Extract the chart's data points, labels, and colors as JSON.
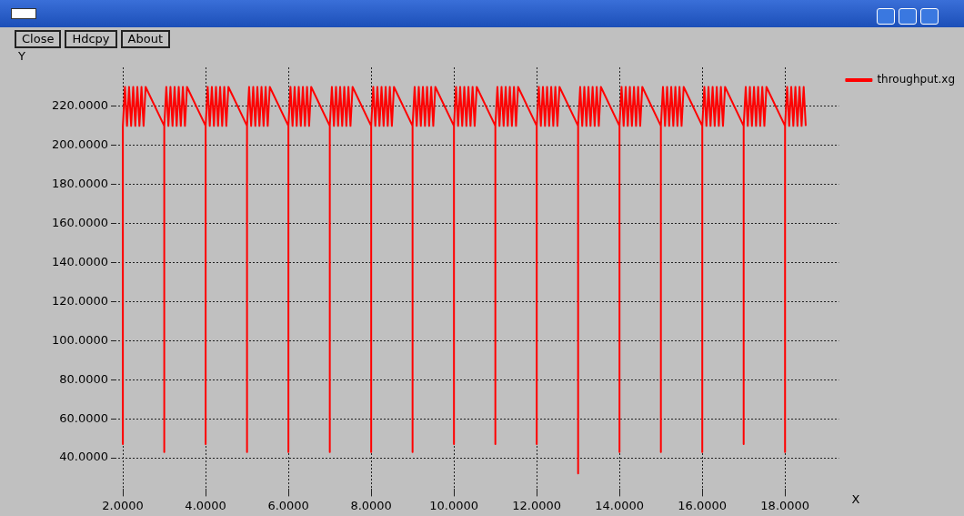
{
  "chart_data": {
    "type": "line",
    "xlabel": "X",
    "ylabel": "Y",
    "annotations": [
      "Close",
      "Hdcpy",
      "About"
    ],
    "xlim": [
      1.8,
      19.3
    ],
    "ylim": [
      24,
      240
    ],
    "xticks": [
      {
        "value": 2,
        "label": "2.0000"
      },
      {
        "value": 4,
        "label": "4.0000"
      },
      {
        "value": 6,
        "label": "6.0000"
      },
      {
        "value": 8,
        "label": "8.0000"
      },
      {
        "value": 10,
        "label": "10.0000"
      },
      {
        "value": 12,
        "label": "12.0000"
      },
      {
        "value": 14,
        "label": "14.0000"
      },
      {
        "value": 16,
        "label": "16.0000"
      },
      {
        "value": 18,
        "label": "18.0000"
      }
    ],
    "yticks": [
      {
        "value": 40,
        "label": "40.0000"
      },
      {
        "value": 60,
        "label": "60.0000"
      },
      {
        "value": 80,
        "label": "80.0000"
      },
      {
        "value": 100,
        "label": "100.0000"
      },
      {
        "value": 120,
        "label": "120.0000"
      },
      {
        "value": 140,
        "label": "140.0000"
      },
      {
        "value": 160,
        "label": "160.0000"
      },
      {
        "value": 180,
        "label": "180.0000"
      },
      {
        "value": 200,
        "label": "200.0000"
      },
      {
        "value": 220,
        "label": "220.0000"
      }
    ],
    "grid": true,
    "legend": "top right",
    "marker": "none",
    "line_style": "solid",
    "series": [
      {
        "name": "throughput.xg",
        "color": "#ff0000",
        "x": [
          2,
          2,
          2,
          2.05,
          2.1,
          2.15,
          2.2,
          2.25,
          2.3,
          2.35,
          2.4,
          2.45,
          2.5,
          2.55,
          3,
          3,
          3,
          3.05,
          3.1,
          3.15,
          3.2,
          3.25,
          3.3,
          3.35,
          3.4,
          3.45,
          3.5,
          3.55,
          4,
          4,
          4,
          4.05,
          4.1,
          4.15,
          4.2,
          4.25,
          4.3,
          4.35,
          4.4,
          4.45,
          4.5,
          4.55,
          5,
          5,
          5,
          5.05,
          5.1,
          5.15,
          5.2,
          5.25,
          5.3,
          5.35,
          5.4,
          5.45,
          5.5,
          5.55,
          6,
          6,
          6,
          6.05,
          6.1,
          6.15,
          6.2,
          6.25,
          6.3,
          6.35,
          6.4,
          6.45,
          6.5,
          6.55,
          7,
          7,
          7,
          7.05,
          7.1,
          7.15,
          7.2,
          7.25,
          7.3,
          7.35,
          7.4,
          7.45,
          7.5,
          7.55,
          8,
          8,
          8,
          8.05,
          8.1,
          8.15,
          8.2,
          8.25,
          8.3,
          8.35,
          8.4,
          8.45,
          8.5,
          8.55,
          9,
          9,
          9,
          9.05,
          9.1,
          9.15,
          9.2,
          9.25,
          9.3,
          9.35,
          9.4,
          9.45,
          9.5,
          9.55,
          10,
          10,
          10,
          10.05,
          10.1,
          10.15,
          10.2,
          10.25,
          10.3,
          10.35,
          10.4,
          10.45,
          10.5,
          10.55,
          11,
          11,
          11,
          11.05,
          11.1,
          11.15,
          11.2,
          11.25,
          11.3,
          11.35,
          11.4,
          11.45,
          11.5,
          11.55,
          12,
          12,
          12,
          12.05,
          12.1,
          12.15,
          12.2,
          12.25,
          12.3,
          12.35,
          12.4,
          12.45,
          12.5,
          12.55,
          13,
          13,
          13,
          13.05,
          13.1,
          13.15,
          13.2,
          13.25,
          13.3,
          13.35,
          13.4,
          13.45,
          13.5,
          13.55,
          14,
          14,
          14,
          14.05,
          14.1,
          14.15,
          14.2,
          14.25,
          14.3,
          14.35,
          14.4,
          14.45,
          14.5,
          14.55,
          15,
          15,
          15,
          15.05,
          15.1,
          15.15,
          15.2,
          15.25,
          15.3,
          15.35,
          15.4,
          15.45,
          15.5,
          15.55,
          16,
          16,
          16,
          16.05,
          16.1,
          16.15,
          16.2,
          16.25,
          16.3,
          16.35,
          16.4,
          16.45,
          16.5,
          16.55,
          17,
          17,
          17,
          17.05,
          17.1,
          17.15,
          17.2,
          17.25,
          17.3,
          17.35,
          17.4,
          17.45,
          17.5,
          17.55,
          18,
          18,
          18,
          18.05,
          18.1,
          18.15,
          18.2,
          18.25,
          18.3,
          18.35,
          18.4,
          18.45,
          18.5
        ],
        "values": [
          210,
          47,
          210,
          230,
          210,
          230,
          210,
          230,
          210,
          230,
          210,
          230,
          210,
          230,
          210,
          43,
          210,
          230,
          210,
          230,
          210,
          230,
          210,
          230,
          210,
          230,
          210,
          230,
          210,
          47,
          210,
          230,
          210,
          230,
          210,
          230,
          210,
          230,
          210,
          230,
          210,
          230,
          210,
          43,
          210,
          230,
          210,
          230,
          210,
          230,
          210,
          230,
          210,
          230,
          210,
          230,
          210,
          43,
          210,
          230,
          210,
          230,
          210,
          230,
          210,
          230,
          210,
          230,
          210,
          230,
          210,
          43,
          210,
          230,
          210,
          230,
          210,
          230,
          210,
          230,
          210,
          230,
          210,
          230,
          210,
          43,
          210,
          230,
          210,
          230,
          210,
          230,
          210,
          230,
          210,
          230,
          210,
          230,
          210,
          43,
          210,
          230,
          210,
          230,
          210,
          230,
          210,
          230,
          210,
          230,
          210,
          230,
          210,
          47,
          210,
          230,
          210,
          230,
          210,
          230,
          210,
          230,
          210,
          230,
          210,
          230,
          210,
          47,
          210,
          230,
          210,
          230,
          210,
          230,
          210,
          230,
          210,
          230,
          210,
          230,
          210,
          47,
          210,
          230,
          210,
          230,
          210,
          230,
          210,
          230,
          210,
          230,
          210,
          230,
          210,
          32,
          210,
          230,
          210,
          230,
          210,
          230,
          210,
          230,
          210,
          230,
          210,
          230,
          210,
          43,
          210,
          230,
          210,
          230,
          210,
          230,
          210,
          230,
          210,
          230,
          210,
          230,
          210,
          43,
          210,
          230,
          210,
          230,
          210,
          230,
          210,
          230,
          210,
          230,
          210,
          230,
          210,
          43,
          210,
          230,
          210,
          230,
          210,
          230,
          210,
          230,
          210,
          230,
          210,
          230,
          210,
          47,
          210,
          230,
          210,
          230,
          210,
          230,
          210,
          230,
          210,
          230,
          210,
          230,
          210,
          43,
          210,
          230,
          210,
          230,
          210,
          230,
          210,
          230,
          210,
          230,
          210
        ]
      }
    ]
  }
}
